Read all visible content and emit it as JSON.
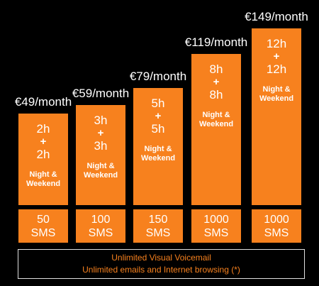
{
  "chart_data": {
    "type": "bar",
    "categories": [
      "€49/month",
      "€59/month",
      "€79/month",
      "€119/month",
      "€149/month"
    ],
    "values": [
      49,
      59,
      79,
      119,
      149
    ],
    "call_top": [
      "2h",
      "3h",
      "5h",
      "8h",
      "12h"
    ],
    "plus": "+",
    "call_bottom": [
      "2h",
      "3h",
      "5h",
      "8h",
      "12h"
    ],
    "night_line1": "Night &",
    "night_line2": "Weekend",
    "sms_counts": [
      "50",
      "100",
      "150",
      "1000",
      "1000"
    ],
    "sms_unit": "SMS",
    "colors": {
      "bar": "#f7811e",
      "background": "#000000",
      "text": "#ffffff"
    }
  },
  "footer": {
    "line1": "Unlimited Visual Voicemail",
    "line2": "Unlimited emails and Internet browsing (*)"
  }
}
